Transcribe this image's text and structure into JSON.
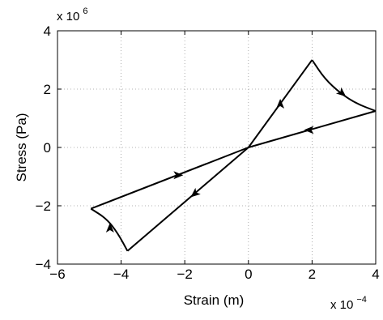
{
  "chart_data": {
    "type": "line",
    "title": "",
    "xlabel": "Strain (m)",
    "ylabel": "Stress (Pa)",
    "x_multiplier": {
      "base": "x 10",
      "exponent": "−4"
    },
    "y_multiplier": {
      "base": "x 10",
      "exponent": "6"
    },
    "xlim": [
      -6,
      4
    ],
    "ylim": [
      -4,
      4
    ],
    "xticks": [
      -6,
      -4,
      -2,
      0,
      2,
      4
    ],
    "yticks": [
      -4,
      -2,
      0,
      2,
      4
    ],
    "xtick_labels": [
      "−6",
      "−4",
      "−2",
      "0",
      "2",
      "4"
    ],
    "ytick_labels": [
      "−4",
      "−2",
      "0",
      "2",
      "4"
    ],
    "grid": true,
    "series": [
      {
        "color": "#000000",
        "segments": [
          {
            "kind": "straight",
            "x": [
              0,
              2
            ],
            "y": [
              0,
              3
            ]
          },
          {
            "kind": "curve_concave",
            "x": [
              2,
              2.4,
              2.9,
              3.4,
              4
            ],
            "y": [
              3,
              2.35,
              1.85,
              1.5,
              1.25
            ]
          },
          {
            "kind": "straight",
            "x": [
              4,
              0
            ],
            "y": [
              1.25,
              0
            ]
          },
          {
            "kind": "straight",
            "x": [
              0,
              -3.8
            ],
            "y": [
              0,
              -3.55
            ]
          },
          {
            "kind": "curve_concave",
            "x": [
              -3.8,
              -4.1,
              -4.45,
              -4.95
            ],
            "y": [
              -3.55,
              -2.95,
              -2.45,
              -2.1
            ]
          },
          {
            "kind": "straight",
            "x": [
              -4.95,
              0
            ],
            "y": [
              -2.1,
              0
            ]
          }
        ],
        "arrows": [
          {
            "x": 1.0,
            "y": 1.5,
            "dir": "up"
          },
          {
            "x": 2.95,
            "y": 1.85,
            "dir": "down-right"
          },
          {
            "x": 1.9,
            "y": 0.6,
            "dir": "left"
          },
          {
            "x": -1.7,
            "y": -1.6,
            "dir": "down-left"
          },
          {
            "x": -4.35,
            "y": -2.75,
            "dir": "up"
          },
          {
            "x": -2.2,
            "y": -0.95,
            "dir": "right"
          }
        ]
      }
    ]
  }
}
